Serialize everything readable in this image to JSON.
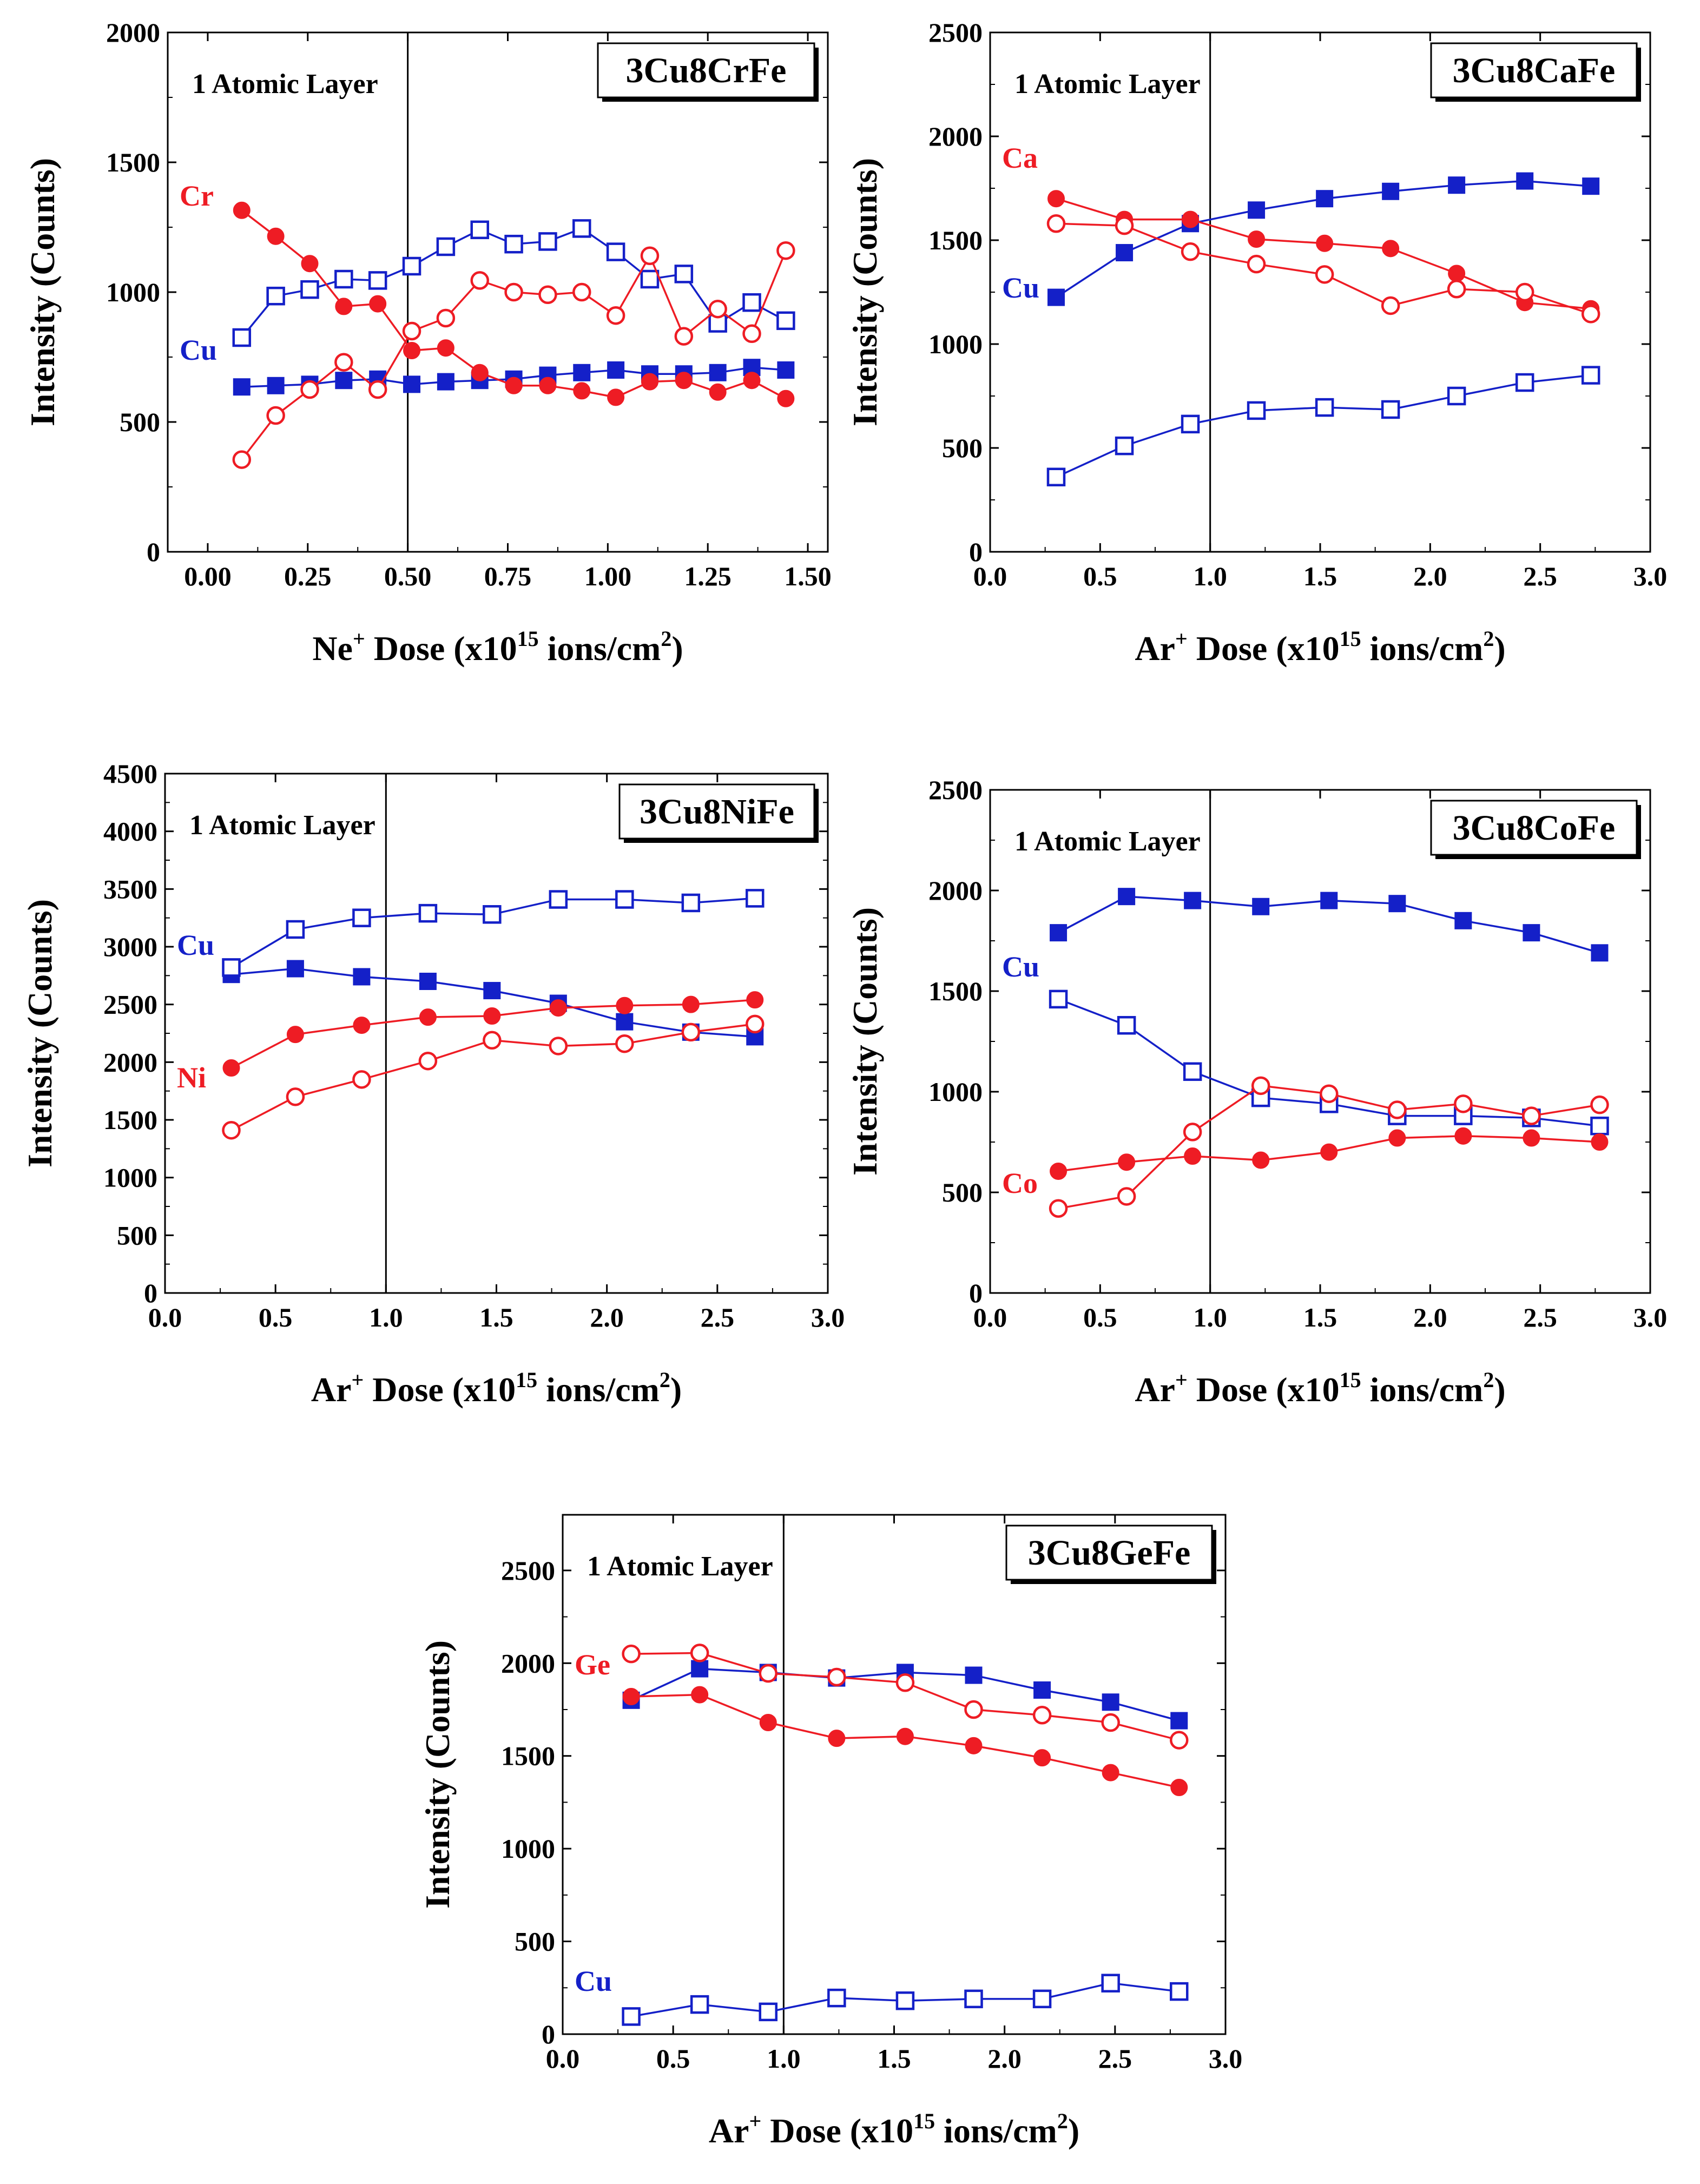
{
  "colors": {
    "red": "#ee1c24",
    "blue": "#1420c8",
    "axis": "#000000"
  },
  "chart_data": [
    {
      "type": "line",
      "title": "3Cu8CrFe",
      "annotation": "1 Atomic Layer",
      "xlabel": {
        "prefix": "Ne",
        "ion_charge": "+",
        "middle": " Dose (x10",
        "exponent": "15",
        "suffix": " ions/cm",
        "unit_power": "2",
        "close": ")"
      },
      "ylabel": "Intensity (Counts)",
      "xlim": [
        -0.1,
        1.55
      ],
      "ylim": [
        0,
        2000
      ],
      "xticks": [
        "0.00",
        "0.25",
        "0.50",
        "0.75",
        "1.00",
        "1.25",
        "1.50"
      ],
      "yticks": [
        "0",
        "500",
        "1000",
        "1500",
        "2000"
      ],
      "vline": 0.5,
      "labels": [
        {
          "text": "Cr",
          "color": "red"
        },
        {
          "text": "Cu",
          "color": "blue"
        }
      ],
      "series": [
        {
          "name": "Cu filled",
          "color": "blue",
          "marker": "square-filled",
          "x": [
            0.085,
            0.17,
            0.255,
            0.34,
            0.425,
            0.51,
            0.595,
            0.68,
            0.765,
            0.85,
            0.935,
            1.02,
            1.105,
            1.19,
            1.275,
            1.36,
            1.445
          ],
          "y": [
            635,
            640,
            645,
            660,
            665,
            645,
            655,
            660,
            665,
            680,
            690,
            700,
            685,
            685,
            690,
            710,
            700
          ]
        },
        {
          "name": "Cu open",
          "color": "blue",
          "marker": "square-open",
          "x": [
            0.085,
            0.17,
            0.255,
            0.34,
            0.425,
            0.51,
            0.595,
            0.68,
            0.765,
            0.85,
            0.935,
            1.02,
            1.105,
            1.19,
            1.275,
            1.36,
            1.445
          ],
          "y": [
            825,
            985,
            1010,
            1050,
            1045,
            1100,
            1175,
            1240,
            1185,
            1195,
            1245,
            1155,
            1050,
            1070,
            880,
            960,
            890
          ]
        },
        {
          "name": "Cr filled",
          "color": "red",
          "marker": "circle-filled",
          "x": [
            0.085,
            0.17,
            0.255,
            0.34,
            0.425,
            0.51,
            0.595,
            0.68,
            0.765,
            0.85,
            0.935,
            1.02,
            1.105,
            1.19,
            1.275,
            1.36,
            1.445
          ],
          "y": [
            1315,
            1215,
            1110,
            945,
            955,
            775,
            785,
            690,
            640,
            640,
            620,
            595,
            655,
            660,
            615,
            660,
            590
          ]
        },
        {
          "name": "Cr open",
          "color": "red",
          "marker": "circle-open",
          "x": [
            0.085,
            0.17,
            0.255,
            0.34,
            0.425,
            0.51,
            0.595,
            0.68,
            0.765,
            0.85,
            0.935,
            1.02,
            1.105,
            1.19,
            1.275,
            1.36,
            1.445
          ],
          "y": [
            355,
            525,
            625,
            730,
            625,
            850,
            900,
            1045,
            1000,
            990,
            1000,
            910,
            1140,
            830,
            935,
            840,
            1160
          ]
        }
      ]
    },
    {
      "type": "line",
      "title": "3Cu8CaFe",
      "annotation": "1 Atomic Layer",
      "xlabel": {
        "prefix": "Ar",
        "ion_charge": "+",
        "middle": " Dose (x10",
        "exponent": "15",
        "suffix": " ions/cm",
        "unit_power": "2",
        "close": ")"
      },
      "ylabel": "Intensity (Counts)",
      "xlim": [
        0,
        3
      ],
      "ylim": [
        0,
        2500
      ],
      "xticks": [
        "0.0",
        "0.5",
        "1.0",
        "1.5",
        "2.0",
        "2.5",
        "3.0"
      ],
      "yticks": [
        "0",
        "500",
        "1000",
        "1500",
        "2000",
        "2500"
      ],
      "vline": 1.0,
      "labels": [
        {
          "text": "Ca",
          "color": "red"
        },
        {
          "text": "Cu",
          "color": "blue"
        }
      ],
      "series": [
        {
          "name": "Cu filled",
          "color": "blue",
          "marker": "square-filled",
          "x": [
            0.3,
            0.61,
            0.91,
            1.21,
            1.52,
            1.82,
            2.12,
            2.43,
            2.73
          ],
          "y": [
            1225,
            1440,
            1580,
            1645,
            1700,
            1735,
            1765,
            1785,
            1760
          ]
        },
        {
          "name": "Cu open",
          "color": "blue",
          "marker": "square-open",
          "x": [
            0.3,
            0.61,
            0.91,
            1.21,
            1.52,
            1.82,
            2.12,
            2.43,
            2.73
          ],
          "y": [
            360,
            510,
            615,
            680,
            695,
            685,
            750,
            815,
            850
          ]
        },
        {
          "name": "Ca filled",
          "color": "red",
          "marker": "circle-filled",
          "x": [
            0.3,
            0.61,
            0.91,
            1.21,
            1.52,
            1.82,
            2.12,
            2.43,
            2.73
          ],
          "y": [
            1700,
            1600,
            1600,
            1505,
            1485,
            1460,
            1340,
            1200,
            1170
          ]
        },
        {
          "name": "Ca open",
          "color": "red",
          "marker": "circle-open",
          "x": [
            0.3,
            0.61,
            0.91,
            1.21,
            1.52,
            1.82,
            2.12,
            2.43,
            2.73
          ],
          "y": [
            1580,
            1570,
            1445,
            1385,
            1335,
            1185,
            1265,
            1250,
            1145
          ]
        }
      ]
    },
    {
      "type": "line",
      "title": "3Cu8NiFe",
      "annotation": "1 Atomic Layer",
      "xlabel": {
        "prefix": "Ar",
        "ion_charge": "+",
        "middle": " Dose (x10",
        "exponent": "15",
        "suffix": " ions/cm",
        "unit_power": "2",
        "close": ")"
      },
      "ylabel": "Intensity (Counts)",
      "xlim": [
        0,
        3
      ],
      "ylim": [
        0,
        4500
      ],
      "xticks": [
        "0.0",
        "0.5",
        "1.0",
        "1.5",
        "2.0",
        "2.5",
        "3.0"
      ],
      "yticks": [
        "0",
        "500",
        "1000",
        "1500",
        "2000",
        "2500",
        "3000",
        "3500",
        "4000",
        "4500"
      ],
      "vline": 1.0,
      "labels": [
        {
          "text": "Cu",
          "color": "blue"
        },
        {
          "text": "Ni",
          "color": "red"
        }
      ],
      "series": [
        {
          "name": "Cu filled",
          "color": "blue",
          "marker": "square-filled",
          "x": [
            0.3,
            0.59,
            0.89,
            1.19,
            1.48,
            1.78,
            2.08,
            2.38,
            2.67
          ],
          "y": [
            2760,
            2810,
            2740,
            2700,
            2620,
            2510,
            2350,
            2260,
            2220
          ]
        },
        {
          "name": "Cu open",
          "color": "blue",
          "marker": "square-open",
          "x": [
            0.3,
            0.59,
            0.89,
            1.19,
            1.48,
            1.78,
            2.08,
            2.38,
            2.67
          ],
          "y": [
            2820,
            3150,
            3250,
            3290,
            3280,
            3410,
            3410,
            3380,
            3420
          ]
        },
        {
          "name": "Ni filled",
          "color": "red",
          "marker": "circle-filled",
          "x": [
            0.3,
            0.59,
            0.89,
            1.19,
            1.48,
            1.78,
            2.08,
            2.38,
            2.67
          ],
          "y": [
            1950,
            2240,
            2320,
            2390,
            2400,
            2470,
            2490,
            2500,
            2540
          ]
        },
        {
          "name": "Ni open",
          "color": "red",
          "marker": "circle-open",
          "x": [
            0.3,
            0.59,
            0.89,
            1.19,
            1.48,
            1.78,
            2.08,
            2.38,
            2.67
          ],
          "y": [
            1410,
            1700,
            1850,
            2010,
            2190,
            2140,
            2160,
            2260,
            2330
          ]
        }
      ]
    },
    {
      "type": "line",
      "title": "3Cu8CoFe",
      "annotation": "1 Atomic Layer",
      "xlabel": {
        "prefix": "Ar",
        "ion_charge": "+",
        "middle": " Dose (x10",
        "exponent": "15",
        "suffix": " ions/cm",
        "unit_power": "2",
        "close": ")"
      },
      "ylabel": "Intensity (Counts)",
      "xlim": [
        0,
        3
      ],
      "ylim": [
        0,
        2500
      ],
      "xticks": [
        "0.0",
        "0.5",
        "1.0",
        "1.5",
        "2.0",
        "2.5",
        "3.0"
      ],
      "yticks": [
        "0",
        "500",
        "1000",
        "1500",
        "2000",
        "2500"
      ],
      "vline": 1.0,
      "labels": [
        {
          "text": "Cu",
          "color": "blue"
        },
        {
          "text": "Co",
          "color": "red"
        }
      ],
      "series": [
        {
          "name": "Cu filled",
          "color": "blue",
          "marker": "square-filled",
          "x": [
            0.31,
            0.62,
            0.92,
            1.23,
            1.54,
            1.85,
            2.15,
            2.46,
            2.77
          ],
          "y": [
            1790,
            1970,
            1950,
            1920,
            1950,
            1935,
            1850,
            1790,
            1690
          ]
        },
        {
          "name": "Cu open",
          "color": "blue",
          "marker": "square-open",
          "x": [
            0.31,
            0.62,
            0.92,
            1.23,
            1.54,
            1.85,
            2.15,
            2.46,
            2.77
          ],
          "y": [
            1460,
            1330,
            1100,
            970,
            940,
            880,
            880,
            870,
            830
          ]
        },
        {
          "name": "Co filled",
          "color": "red",
          "marker": "circle-filled",
          "x": [
            0.31,
            0.62,
            0.92,
            1.23,
            1.54,
            1.85,
            2.15,
            2.46,
            2.77
          ],
          "y": [
            605,
            650,
            680,
            660,
            700,
            770,
            780,
            770,
            750
          ]
        },
        {
          "name": "Co open",
          "color": "red",
          "marker": "circle-open",
          "x": [
            0.31,
            0.62,
            0.92,
            1.23,
            1.54,
            1.85,
            2.15,
            2.46,
            2.77
          ],
          "y": [
            420,
            480,
            800,
            1030,
            990,
            910,
            940,
            880,
            935
          ]
        }
      ]
    },
    {
      "type": "line",
      "title": "3Cu8GeFe",
      "annotation": "1 Atomic Layer",
      "xlabel": {
        "prefix": "Ar",
        "ion_charge": "+",
        "middle": " Dose (x10",
        "exponent": "15",
        "suffix": " ions/cm",
        "unit_power": "2",
        "close": ")"
      },
      "ylabel": "Intensity (Counts)",
      "xlim": [
        0,
        3
      ],
      "ylim": [
        0,
        2800
      ],
      "xticks": [
        "0.0",
        "0.5",
        "1.0",
        "1.5",
        "2.0",
        "2.5",
        "3.0"
      ],
      "yticks": [
        "0",
        "500",
        "1000",
        "1500",
        "2000",
        "2500"
      ],
      "vline": 1.0,
      "labels": [
        {
          "text": "Ge",
          "color": "red"
        },
        {
          "text": "Cu",
          "color": "blue"
        }
      ],
      "series": [
        {
          "name": "Cu filled",
          "color": "blue",
          "marker": "square-filled",
          "x": [
            0.31,
            0.62,
            0.93,
            1.24,
            1.55,
            1.86,
            2.17,
            2.48,
            2.79
          ],
          "y": [
            1800,
            1970,
            1950,
            1920,
            1950,
            1935,
            1855,
            1790,
            1690
          ]
        },
        {
          "name": "Cu open",
          "color": "blue",
          "marker": "square-open",
          "x": [
            0.31,
            0.62,
            0.93,
            1.24,
            1.55,
            1.86,
            2.17,
            2.48,
            2.79
          ],
          "y": [
            95,
            160,
            120,
            195,
            180,
            190,
            190,
            275,
            230
          ]
        },
        {
          "name": "Ge filled",
          "color": "red",
          "marker": "circle-filled",
          "x": [
            0.31,
            0.62,
            0.93,
            1.24,
            1.55,
            1.86,
            2.17,
            2.48,
            2.79
          ],
          "y": [
            1820,
            1830,
            1680,
            1595,
            1605,
            1555,
            1490,
            1410,
            1330
          ]
        },
        {
          "name": "Ge open",
          "color": "red",
          "marker": "circle-open",
          "x": [
            0.31,
            0.62,
            0.93,
            1.24,
            1.55,
            1.86,
            2.17,
            2.48,
            2.79
          ],
          "y": [
            2050,
            2055,
            1945,
            1925,
            1895,
            1750,
            1720,
            1680,
            1585
          ]
        }
      ]
    }
  ]
}
